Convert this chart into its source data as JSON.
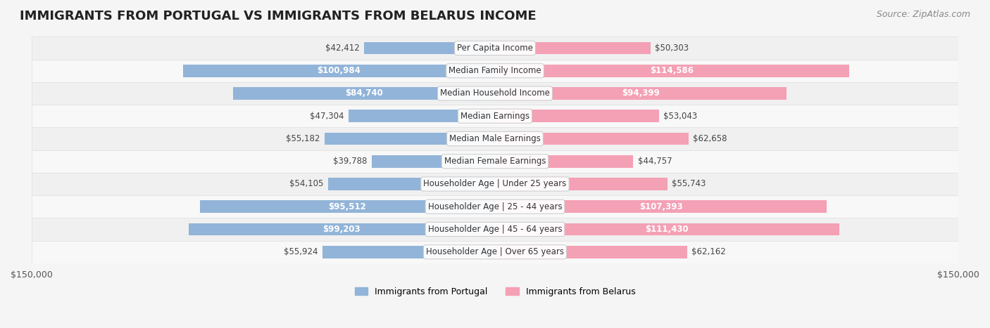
{
  "title": "IMMIGRANTS FROM PORTUGAL VS IMMIGRANTS FROM BELARUS INCOME",
  "source": "Source: ZipAtlas.com",
  "categories": [
    "Per Capita Income",
    "Median Family Income",
    "Median Household Income",
    "Median Earnings",
    "Median Male Earnings",
    "Median Female Earnings",
    "Householder Age | Under 25 years",
    "Householder Age | 25 - 44 years",
    "Householder Age | 45 - 64 years",
    "Householder Age | Over 65 years"
  ],
  "portugal_values": [
    42412,
    100984,
    84740,
    47304,
    55182,
    39788,
    54105,
    95512,
    99203,
    55924
  ],
  "belarus_values": [
    50303,
    114586,
    94399,
    53043,
    62658,
    44757,
    55743,
    107393,
    111430,
    62162
  ],
  "portugal_labels": [
    "$42,412",
    "$100,984",
    "$84,740",
    "$47,304",
    "$55,182",
    "$39,788",
    "$54,105",
    "$95,512",
    "$99,203",
    "$55,924"
  ],
  "belarus_labels": [
    "$50,303",
    "$114,586",
    "$94,399",
    "$53,043",
    "$62,658",
    "$44,757",
    "$55,743",
    "$107,393",
    "$111,430",
    "$62,162"
  ],
  "portugal_color": "#92b4d8",
  "belarus_color": "#f4a0b5",
  "portugal_color_dark": "#6a9ec8",
  "belarus_color_dark": "#f07090",
  "max_val": 150000,
  "legend_portugal": "Immigrants from Portugal",
  "legend_belarus": "Immigrants from Belarus",
  "background_color": "#f5f5f5",
  "row_bg_color": "#ffffff",
  "label_inside_threshold": 70000,
  "bar_height": 0.55,
  "title_fontsize": 13,
  "source_fontsize": 9,
  "label_fontsize": 8.5,
  "category_fontsize": 8.5
}
